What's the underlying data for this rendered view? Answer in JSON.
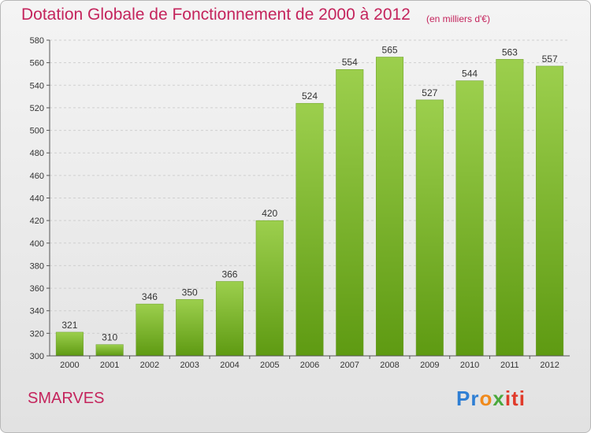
{
  "title": "Dotation Globale de Fonctionnement de 2000 à 2012",
  "subtitle": "(en milliers d'€)",
  "commune": "SMARVES",
  "logo": {
    "part1": "Pr",
    "part2": "o",
    "part3": "x",
    "part4": "iti"
  },
  "colors": {
    "bar_top": "#9ccf4d",
    "bar_bottom": "#5e9a12",
    "title": "#c4245c"
  },
  "chart_data": {
    "type": "bar",
    "title": "Dotation Globale de Fonctionnement de 2000 à 2012",
    "subtitle": "(en milliers d'€)",
    "categories": [
      "2000",
      "2001",
      "2002",
      "2003",
      "2004",
      "2005",
      "2006",
      "2007",
      "2008",
      "2009",
      "2010",
      "2011",
      "2012"
    ],
    "values": [
      321,
      310,
      346,
      350,
      366,
      420,
      524,
      554,
      565,
      527,
      544,
      563,
      557
    ],
    "ylim": [
      300,
      580
    ],
    "yticks": [
      300,
      320,
      340,
      360,
      380,
      400,
      420,
      440,
      460,
      480,
      500,
      520,
      540,
      560,
      580
    ],
    "grid": true,
    "xlabel": "",
    "ylabel": ""
  }
}
